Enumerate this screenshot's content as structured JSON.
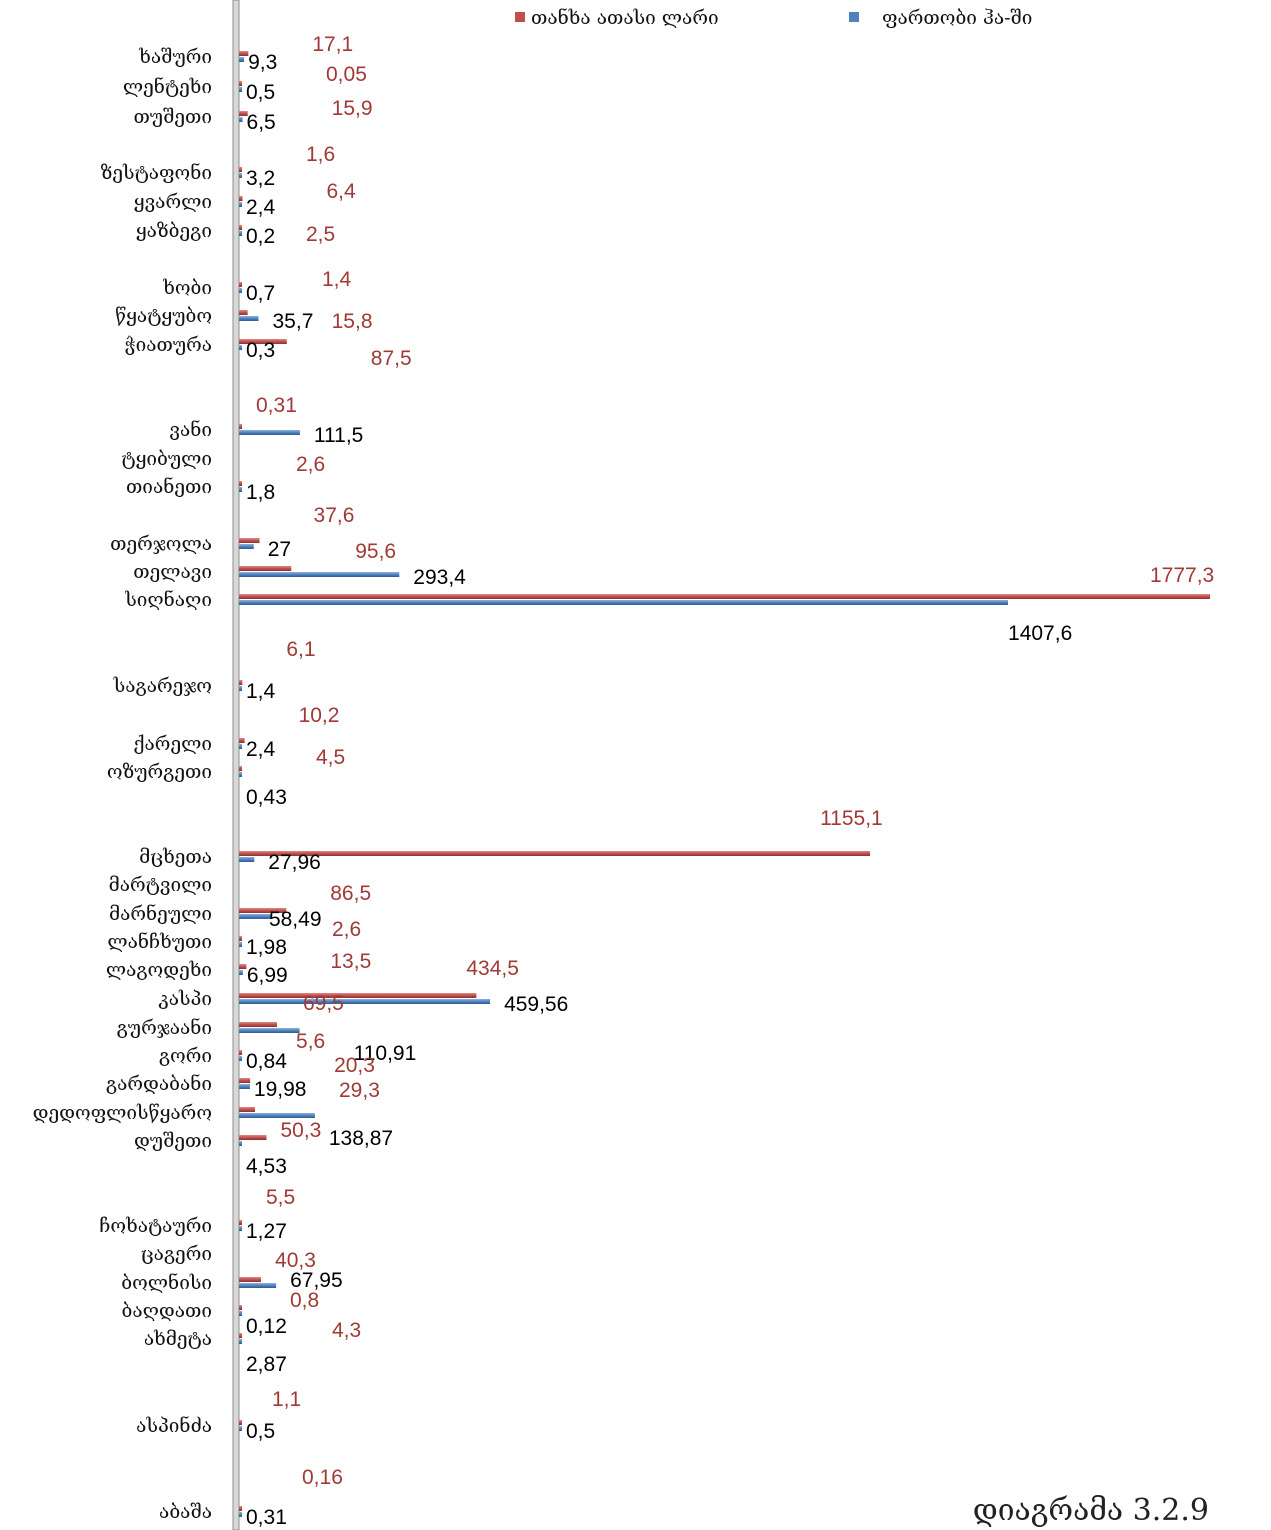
{
  "chart_data": {
    "type": "bar",
    "orientation": "horizontal",
    "caption": "დიაგრამა 3.2.9",
    "legend_position": "top-right",
    "series": [
      {
        "name": "თანხა ათასი ლარი",
        "color": "#c0504d"
      },
      {
        "name": "ფართობი ჰა-ში",
        "color": "#4f81bd"
      }
    ],
    "rows": [
      {
        "category": "ხაშური",
        "area": 9.3,
        "area_label": "9,3",
        "amount": 17.1,
        "amount_label": "17,1"
      },
      {
        "category": "ლენტეხი",
        "area": 0.5,
        "area_label": "0,5",
        "amount": 0.05,
        "amount_label": "0,05"
      },
      {
        "category": "თუშეთი",
        "area": 6.5,
        "area_label": "6,5",
        "amount": 15.9,
        "amount_label": "15,9"
      },
      {
        "category": "ზესტაფონი",
        "area": 3.2,
        "area_label": "3,2",
        "amount": 1.6,
        "amount_label": "1,6"
      },
      {
        "category": "ყვარლი",
        "area": 2.4,
        "area_label": "2,4",
        "amount": 6.4,
        "amount_label": "6,4"
      },
      {
        "category": "ყაზბეგი",
        "area": 0.2,
        "area_label": "0,2",
        "amount": 2.5,
        "amount_label": "2,5"
      },
      {
        "category": "ხობი",
        "area": 0.7,
        "area_label": "0,7",
        "amount": 1.4,
        "amount_label": "1,4"
      },
      {
        "category": "წყატყუბო",
        "area": 35.7,
        "area_label": "35,7",
        "amount": 15.8,
        "amount_label": "15,8"
      },
      {
        "category": "ჭიათურა",
        "area": 0.3,
        "area_label": "0,3",
        "amount": 87.5,
        "amount_label": "87,5"
      },
      {
        "category": "ვანი",
        "area": 111.5,
        "area_label": "111,5",
        "amount": 0.31,
        "amount_label": "0,31"
      },
      {
        "category": "ტყიბული",
        "area": null,
        "area_label": "",
        "amount": null,
        "amount_label": ""
      },
      {
        "category": "თიანეთი",
        "area": 1.8,
        "area_label": "1,8",
        "amount": 2.6,
        "amount_label": "2,6"
      },
      {
        "category": "თერჯოლა",
        "area": 27,
        "area_label": "27",
        "amount": 37.6,
        "amount_label": "37,6"
      },
      {
        "category": "თელავი",
        "area": 293.4,
        "area_label": "293,4",
        "amount": 95.6,
        "amount_label": "95,6"
      },
      {
        "category": "სიღნაღი",
        "area": 1407.6,
        "area_label": "1407,6",
        "amount": 1777.3,
        "amount_label": "1777,3"
      },
      {
        "category": "საგარეჯო",
        "area": 1.4,
        "area_label": "1,4",
        "amount": 6.1,
        "amount_label": "6,1"
      },
      {
        "category": "ქარელი",
        "area": 2.4,
        "area_label": "2,4",
        "amount": 10.2,
        "amount_label": "10,2"
      },
      {
        "category": "ოზურგეთი",
        "area": 0.43,
        "area_label": "0,43",
        "amount": 4.5,
        "amount_label": "4,5"
      },
      {
        "category": "მცხეთა",
        "area": 27.96,
        "area_label": "27,96",
        "amount": 1155.1,
        "amount_label": "1155,1"
      },
      {
        "category": "მარტვილი",
        "area": null,
        "area_label": "",
        "amount": null,
        "amount_label": ""
      },
      {
        "category": "მარნეული",
        "area": 58.49,
        "area_label": "58,49",
        "amount": 86.5,
        "amount_label": "86,5"
      },
      {
        "category": "ლანჩხუთი",
        "area": 1.98,
        "area_label": "1,98",
        "amount": 2.6,
        "amount_label": "2,6"
      },
      {
        "category": "ლაგოდეხი",
        "area": 6.99,
        "area_label": "6,99",
        "amount": 13.5,
        "amount_label": "13,5"
      },
      {
        "category": "კასპი",
        "area": 459.56,
        "area_label": "459,56",
        "amount": 434.5,
        "amount_label": "434,5"
      },
      {
        "category": "გურჯაანი",
        "area": 110.91,
        "area_label": "110,91",
        "amount": 69.5,
        "amount_label": "69,5"
      },
      {
        "category": "გორი",
        "area": 0.84,
        "area_label": "0,84",
        "amount": 5.6,
        "amount_label": "5,6"
      },
      {
        "category": "გარდაბანი",
        "area": 19.98,
        "area_label": "19,98",
        "amount": 20.3,
        "amount_label": "20,3"
      },
      {
        "category": "დედოფლისწყარო",
        "area": 138.87,
        "area_label": "138,87",
        "amount": 29.3,
        "amount_label": "29,3"
      },
      {
        "category": "დუშეთი",
        "area": 4.53,
        "area_label": "4,53",
        "amount": 50.3,
        "amount_label": "50,3"
      },
      {
        "category": "ჩოხატაური",
        "area": 1.27,
        "area_label": "1,27",
        "amount": 5.5,
        "amount_label": "5,5"
      },
      {
        "category": "ცაგერი",
        "area": null,
        "area_label": "",
        "amount": null,
        "amount_label": ""
      },
      {
        "category": "ბოლნისი",
        "area": 67.95,
        "area_label": "67,95",
        "amount": 40.3,
        "amount_label": "40,3"
      },
      {
        "category": "ბაღდათი",
        "area": 0.12,
        "area_label": "0,12",
        "amount": 0.8,
        "amount_label": "0,8"
      },
      {
        "category": "ახმეტა",
        "area": 2.87,
        "area_label": "2,87",
        "amount": 4.3,
        "amount_label": "4,3"
      },
      {
        "category": "ასპინძა",
        "area": 0.5,
        "area_label": "0,5",
        "amount": 1.1,
        "amount_label": "1,1"
      },
      {
        "category": "აბაშა",
        "area": 0.31,
        "area_label": "0,31",
        "amount": 0.16,
        "amount_label": "0,16"
      }
    ]
  }
}
